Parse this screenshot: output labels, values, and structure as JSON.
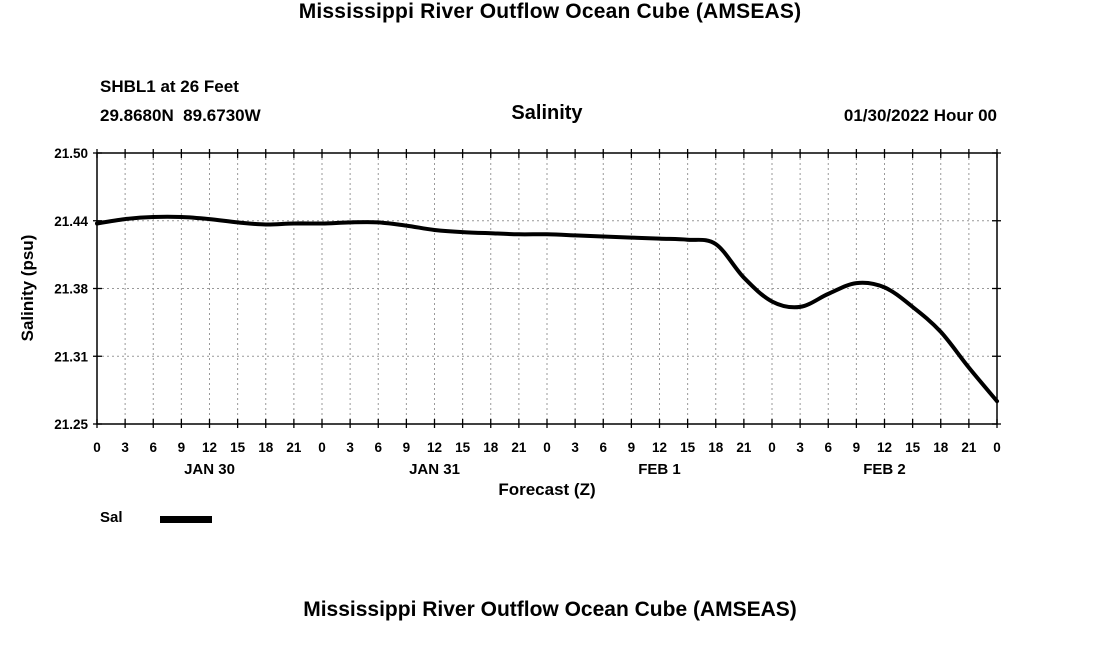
{
  "header": {
    "title": "Mississippi River Outflow Ocean Cube (AMSEAS)",
    "station": "SHBL1 at 26 Feet",
    "coordinates": "29.8680N  89.6730W",
    "panel_title": "Salinity",
    "run_label": "01/30/2022 Hour 00"
  },
  "footer": {
    "title": "Mississippi River Outflow Ocean Cube (AMSEAS)"
  },
  "legend": {
    "label": "Sal"
  },
  "chart_data": {
    "type": "line",
    "title": "Salinity",
    "xlabel": "Forecast (Z)",
    "ylabel": "Salinity (psu)",
    "xlim": [
      0,
      96
    ],
    "xtick_step": 3,
    "xtick_labels": [
      "0",
      "3",
      "6",
      "9",
      "12",
      "15",
      "18",
      "21",
      "0",
      "3",
      "6",
      "9",
      "12",
      "15",
      "18",
      "21",
      "0",
      "3",
      "6",
      "9",
      "12",
      "15",
      "18",
      "21",
      "0",
      "3",
      "6",
      "9",
      "12",
      "15",
      "18",
      "21",
      "0"
    ],
    "day_labels": [
      {
        "label": "JAN 30",
        "hour": 12
      },
      {
        "label": "JAN 31",
        "hour": 36
      },
      {
        "label": "FEB 1",
        "hour": 60
      },
      {
        "label": "FEB 2",
        "hour": 84
      }
    ],
    "ylim": [
      21.25,
      21.5
    ],
    "yticks": [
      {
        "value": 21.25,
        "label": "21.25"
      },
      {
        "value": 21.3125,
        "label": "21.31"
      },
      {
        "value": 21.375,
        "label": "21.38"
      },
      {
        "value": 21.4375,
        "label": "21.44"
      },
      {
        "value": 21.5,
        "label": "21.50"
      }
    ],
    "grid": true,
    "grid_color": "#999999",
    "line_color": "#000000",
    "series": [
      {
        "name": "Sal",
        "x": [
          0,
          3,
          6,
          9,
          12,
          15,
          18,
          21,
          24,
          27,
          30,
          33,
          36,
          39,
          42,
          45,
          48,
          51,
          54,
          57,
          60,
          63,
          66,
          69,
          72,
          75,
          78,
          81,
          84,
          87,
          90,
          93,
          96
        ],
        "values": [
          21.435,
          21.439,
          21.441,
          21.441,
          21.439,
          21.436,
          21.434,
          21.435,
          21.435,
          21.436,
          21.436,
          21.433,
          21.429,
          21.427,
          21.426,
          21.425,
          21.425,
          21.424,
          21.423,
          21.422,
          21.421,
          21.42,
          21.416,
          21.385,
          21.363,
          21.358,
          21.37,
          21.38,
          21.376,
          21.358,
          21.335,
          21.302,
          21.271
        ]
      }
    ]
  }
}
